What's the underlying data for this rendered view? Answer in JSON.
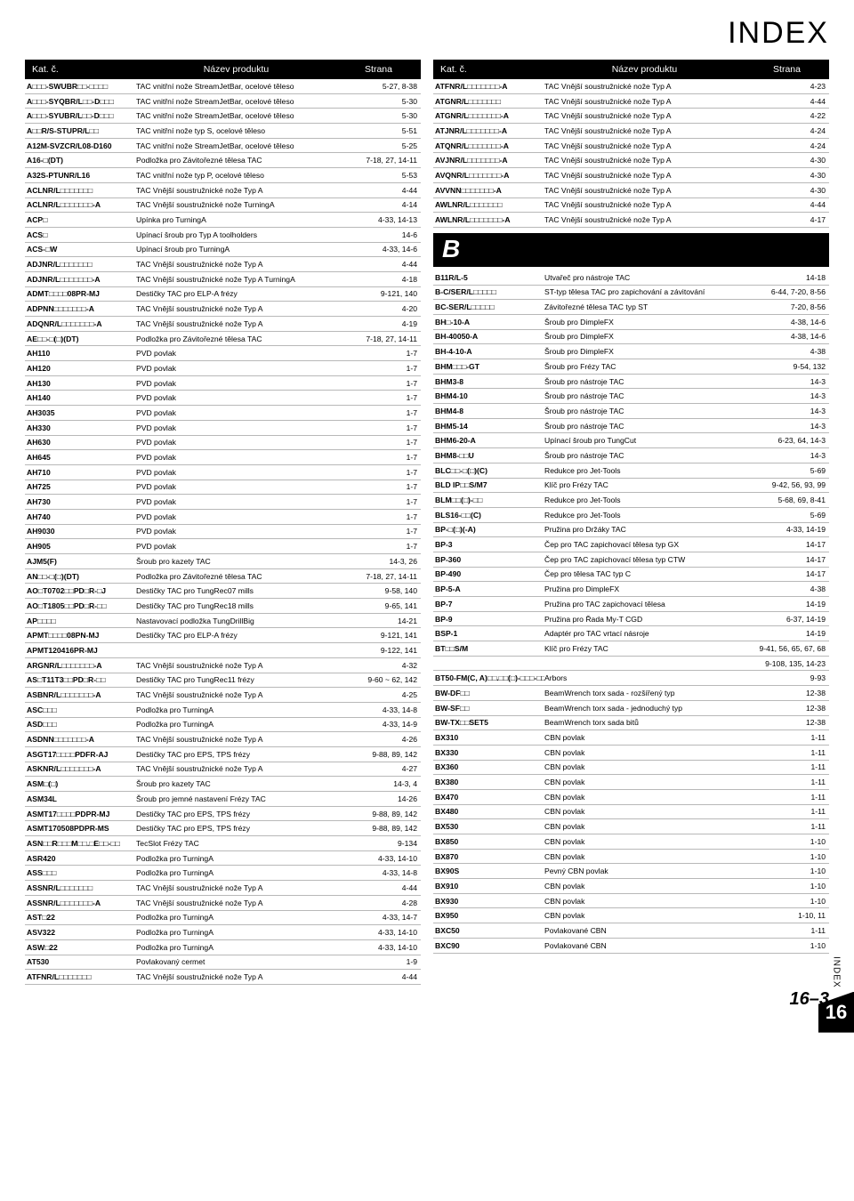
{
  "page_title": "INDEX",
  "side_tab": {
    "label": "INDEX",
    "number": "16"
  },
  "page_number": "16–3",
  "headers": {
    "code": "Kat. č.",
    "name": "Název produktu",
    "page": "Strana"
  },
  "section_b_letter": "B",
  "left": [
    {
      "code": "A□□□-SWUBR□□-□□□□",
      "name": "TAC vnitřní nože StreamJetBar, ocelové těleso",
      "page": "5-27, 8-38"
    },
    {
      "code": "A□□□-SYQBR/L□□-D□□□",
      "name": "TAC vnitřní nože StreamJetBar, ocelové těleso",
      "page": "5-30"
    },
    {
      "code": "A□□□-SYUBR/L□□-D□□□",
      "name": "TAC vnitřní nože StreamJetBar, ocelové těleso",
      "page": "5-30"
    },
    {
      "code": "A□□R/S-STUPR/L□□",
      "name": "TAC vnitřní nože typ S, ocelové těleso",
      "page": "5-51"
    },
    {
      "code": "A12M-SVZCR/L08-D160",
      "name": "TAC vnitřní nože StreamJetBar, ocelové těleso",
      "page": "5-25"
    },
    {
      "code": "A16-□(DT)",
      "name": "Podložka pro Závitořezné tělesa TAC",
      "page": "7-18, 27, 14-11"
    },
    {
      "code": "A32S-PTUNR/L16",
      "name": "TAC vnitřní nože typ P, ocelové těleso",
      "page": "5-53"
    },
    {
      "code": "ACLNR/L□□□□□□□",
      "name": "TAC  Vnější soustružnické nože Typ A",
      "page": "4-44"
    },
    {
      "code": "ACLNR/L□□□□□□□-A",
      "name": "TAC  Vnější soustružnické nože TurningA",
      "page": "4-14"
    },
    {
      "code": "ACP□",
      "name": "Upínka pro TurningA",
      "page": "4-33, 14-13"
    },
    {
      "code": "ACS□",
      "name": "Upínací šroub pro Typ A toolholders",
      "page": "14-6"
    },
    {
      "code": "ACS-□W",
      "name": "Upínací šroub pro TurningA",
      "page": "4-33, 14-6"
    },
    {
      "code": "ADJNR/L□□□□□□□",
      "name": "TAC  Vnější soustružnické nože Typ A",
      "page": "4-44"
    },
    {
      "code": "ADJNR/L□□□□□□□-A",
      "name": "TAC  Vnější soustružnické nože Typ A TurningA",
      "page": "4-18"
    },
    {
      "code": "ADMT□□□□08PR-MJ",
      "name": "Destičky TAC pro ELP-A frézy",
      "page": "9-121, 140"
    },
    {
      "code": "ADPNN□□□□□□□-A",
      "name": "TAC  Vnější soustružnické nože Typ A",
      "page": "4-20"
    },
    {
      "code": "ADQNR/L□□□□□□□-A",
      "name": "TAC  Vnější soustružnické nože Typ A",
      "page": "4-19"
    },
    {
      "code": "AE□□-□(□)(DT)",
      "name": "Podložka pro Závitořezné tělesa TAC",
      "page": "7-18, 27, 14-11"
    },
    {
      "code": "AH110",
      "name": "PVD povlak",
      "page": "1-7"
    },
    {
      "code": "AH120",
      "name": "PVD povlak",
      "page": "1-7"
    },
    {
      "code": "AH130",
      "name": "PVD povlak",
      "page": "1-7"
    },
    {
      "code": "AH140",
      "name": "PVD povlak",
      "page": "1-7"
    },
    {
      "code": "AH3035",
      "name": "PVD povlak",
      "page": "1-7"
    },
    {
      "code": "AH330",
      "name": "PVD povlak",
      "page": "1-7"
    },
    {
      "code": "AH630",
      "name": "PVD povlak",
      "page": "1-7"
    },
    {
      "code": "AH645",
      "name": "PVD povlak",
      "page": "1-7"
    },
    {
      "code": "AH710",
      "name": "PVD povlak",
      "page": "1-7"
    },
    {
      "code": "AH725",
      "name": "PVD povlak",
      "page": "1-7"
    },
    {
      "code": "AH730",
      "name": "PVD povlak",
      "page": "1-7"
    },
    {
      "code": "AH740",
      "name": "PVD povlak",
      "page": "1-7"
    },
    {
      "code": "AH9030",
      "name": "PVD povlak",
      "page": "1-7"
    },
    {
      "code": "AH905",
      "name": "PVD povlak",
      "page": "1-7"
    },
    {
      "code": "AJM5(F)",
      "name": "Šroub pro kazety TAC",
      "page": "14-3, 26"
    },
    {
      "code": "AN□□-□(□)(DT)",
      "name": "Podložka pro Závitořezné tělesa TAC",
      "page": "7-18, 27, 14-11"
    },
    {
      "code": "AO□T0702□□PD□R-□J",
      "name": "Destičky TAC pro TungRec07 mills",
      "page": "9-58, 140"
    },
    {
      "code": "AO□T1805□□PD□R-□□",
      "name": "Destičky TAC pro TungRec18 mills",
      "page": "9-65, 141"
    },
    {
      "code": "AP□□□□",
      "name": "Nastavovací podložka TungDrillBig",
      "page": "14-21"
    },
    {
      "code": "APMT□□□□08PN-MJ",
      "name": "Destičky TAC pro ELP-A frézy",
      "page": "9-121, 141"
    },
    {
      "code": "APMT120416PR-MJ",
      "name": "",
      "page": "9-122, 141"
    },
    {
      "code": "ARGNR/L□□□□□□□-A",
      "name": "TAC  Vnější soustružnické nože Typ A",
      "page": "4-32"
    },
    {
      "code": "AS□T11T3□□PD□R-□□",
      "name": "Destičky TAC pro TungRec11 frézy",
      "page": "9-60 ~ 62, 142"
    },
    {
      "code": "ASBNR/L□□□□□□□-A",
      "name": "TAC  Vnější soustružnické nože Typ A",
      "page": "4-25"
    },
    {
      "code": "ASC□□□",
      "name": "Podložka pro TurningA",
      "page": "4-33, 14-8"
    },
    {
      "code": "ASD□□□",
      "name": "Podložka pro TurningA",
      "page": "4-33, 14-9"
    },
    {
      "code": "ASDNN□□□□□□□-A",
      "name": "TAC  Vnější soustružnické nože Typ A",
      "page": "4-26"
    },
    {
      "code": "ASGT17□□□□PDFR-AJ",
      "name": "Destičky TAC pro EPS, TPS frézy",
      "page": "9-88, 89, 142"
    },
    {
      "code": "ASKNR/L□□□□□□□-A",
      "name": "TAC  Vnější soustružnické nože Typ A",
      "page": "4-27"
    },
    {
      "code": "ASM□(□)",
      "name": "Šroub pro kazety TAC",
      "page": "14-3, 4"
    },
    {
      "code": "ASM34L",
      "name": "Šroub pro jemné nastavení Frézy TAC",
      "page": "14-26"
    },
    {
      "code": "ASMT17□□□□PDPR-MJ",
      "name": "Destičky TAC pro EPS, TPS frézy",
      "page": "9-88, 89, 142"
    },
    {
      "code": "ASMT170508PDPR-MS",
      "name": "Destičky TAC pro EPS, TPS frézy",
      "page": "9-88, 89, 142"
    },
    {
      "code": "ASN□□R□□□M□□.□E□□-□□",
      "name": "TecSlot Frézy TAC",
      "page": "9-134"
    },
    {
      "code": "ASR420",
      "name": "Podložka pro TurningA",
      "page": "4-33, 14-10"
    },
    {
      "code": "ASS□□□",
      "name": "Podložka pro TurningA",
      "page": "4-33, 14-8"
    },
    {
      "code": "ASSNR/L□□□□□□□",
      "name": "TAC  Vnější soustružnické nože Typ A",
      "page": "4-44"
    },
    {
      "code": "ASSNR/L□□□□□□□-A",
      "name": "TAC  Vnější soustružnické nože Typ A",
      "page": "4-28"
    },
    {
      "code": "AST□22",
      "name": "Podložka pro TurningA",
      "page": "4-33, 14-7"
    },
    {
      "code": "ASV322",
      "name": "Podložka pro TurningA",
      "page": "4-33, 14-10"
    },
    {
      "code": "ASW□22",
      "name": "Podložka pro TurningA",
      "page": "4-33, 14-10"
    },
    {
      "code": "AT530",
      "name": "Povlakovaný cermet",
      "page": "1-9"
    },
    {
      "code": "ATFNR/L□□□□□□□",
      "name": "TAC  Vnější soustružnické nože Typ A",
      "page": "4-44"
    }
  ],
  "right_top": [
    {
      "code": "ATFNR/L□□□□□□□-A",
      "name": "TAC  Vnější soustružnické nože Typ A",
      "page": "4-23"
    },
    {
      "code": "ATGNR/L□□□□□□□",
      "name": "TAC  Vnější soustružnické nože Typ A",
      "page": "4-44"
    },
    {
      "code": "ATGNR/L□□□□□□□-A",
      "name": "TAC  Vnější soustružnické nože Typ A",
      "page": "4-22"
    },
    {
      "code": "ATJNR/L□□□□□□□-A",
      "name": "TAC  Vnější soustružnické nože Typ A",
      "page": "4-24"
    },
    {
      "code": "ATQNR/L□□□□□□□-A",
      "name": "TAC  Vnější soustružnické nože Typ A",
      "page": "4-24"
    },
    {
      "code": "AVJNR/L□□□□□□□-A",
      "name": "TAC  Vnější soustružnické nože Typ A",
      "page": "4-30"
    },
    {
      "code": "AVQNR/L□□□□□□□-A",
      "name": "TAC  Vnější soustružnické nože Typ A",
      "page": "4-30"
    },
    {
      "code": "AVVNN□□□□□□□-A",
      "name": "TAC  Vnější soustružnické nože Typ A",
      "page": "4-30"
    },
    {
      "code": "AWLNR/L□□□□□□□",
      "name": "TAC  Vnější soustružnické nože Typ A",
      "page": "4-44"
    },
    {
      "code": "AWLNR/L□□□□□□□-A",
      "name": "TAC  Vnější soustružnické nože Typ A",
      "page": "4-17"
    }
  ],
  "right_b": [
    {
      "code": "B11R/L-5",
      "name": "Utvařeč pro nástroje TAC",
      "page": "14-18"
    },
    {
      "code": "B-C/SER/L□□□□□",
      "name": "ST-typ tělesa TAC pro zapichování a závitování",
      "page": "6-44, 7-20, 8-56"
    },
    {
      "code": "BC-SER/L□□□□□",
      "name": "Závitořezné tělesa TAC typ ST",
      "page": "7-20, 8-56"
    },
    {
      "code": "BH□-10-A",
      "name": "Šroub pro DimpleFX",
      "page": "4-38, 14-6"
    },
    {
      "code": "BH-40050-A",
      "name": "Šroub pro DimpleFX",
      "page": "4-38, 14-6"
    },
    {
      "code": "BH-4-10-A",
      "name": "Šroub pro DimpleFX",
      "page": "4-38"
    },
    {
      "code": "BHM□□□-GT",
      "name": "Šroub pro Frézy TAC",
      "page": "9-54, 132"
    },
    {
      "code": "BHM3-8",
      "name": "Šroub pro nástroje TAC",
      "page": "14-3"
    },
    {
      "code": "BHM4-10",
      "name": "Šroub pro nástroje TAC",
      "page": "14-3"
    },
    {
      "code": "BHM4-8",
      "name": "Šroub pro nástroje TAC",
      "page": "14-3"
    },
    {
      "code": "BHM5-14",
      "name": "Šroub pro nástroje TAC",
      "page": "14-3"
    },
    {
      "code": "BHM6-20-A",
      "name": "Upínací šroub pro TungCut",
      "page": "6-23, 64, 14-3"
    },
    {
      "code": "BHM8-□□U",
      "name": "Šroub pro nástroje TAC",
      "page": "14-3"
    },
    {
      "code": "BLC□□-□(□)(C)",
      "name": "Redukce pro Jet-Tools",
      "page": "5-69"
    },
    {
      "code": "BLD IP□□S/M7",
      "name": "Klíč pro Frézy TAC",
      "page": "9-42, 56, 93, 99"
    },
    {
      "code": "BLM□□(□)-□□",
      "name": "Redukce pro Jet-Tools",
      "page": "5-68, 69, 8-41"
    },
    {
      "code": "BLS16-□□(C)",
      "name": "Redukce pro Jet-Tools",
      "page": "5-69"
    },
    {
      "code": "BP-□(□)(-A)",
      "name": "Pružina pro Držáky TAC",
      "page": "4-33, 14-19"
    },
    {
      "code": "BP-3",
      "name": "Čep pro TAC zapichovací tělesa typ GX",
      "page": "14-17"
    },
    {
      "code": "BP-360",
      "name": "Čep pro TAC zapichovací tělesa typ CTW",
      "page": "14-17"
    },
    {
      "code": "BP-490",
      "name": "Čep pro tělesa  TAC typ C",
      "page": "14-17"
    },
    {
      "code": "BP-5-A",
      "name": "Pružina pro DimpleFX",
      "page": "4-38"
    },
    {
      "code": "BP-7",
      "name": "Pružina pro TAC zapichovací tělesa",
      "page": "14-19"
    },
    {
      "code": "BP-9",
      "name": "Pružina pro Řada My-T CGD",
      "page": "6-37, 14-19"
    },
    {
      "code": "BSP-1",
      "name": "Adaptér pro TAC vrtací násroje",
      "page": "14-19"
    },
    {
      "code": "BT□□S/M",
      "name": "Klíč pro Frézy TAC",
      "page": "9-41, 56, 65, 67, 68"
    },
    {
      "code": "",
      "name": "",
      "page": "9-108, 135, 14-23"
    },
    {
      "code": "BT50-FM(C, A)□□.□□(□)-□□□-□□",
      "name": "Arbors",
      "page": "9-93"
    },
    {
      "code": "BW-DF□□",
      "name": "BeamWrench torx sada - rozšířený typ",
      "page": "12-38"
    },
    {
      "code": "BW-SF□□",
      "name": "BeamWrench torx sada - jednoduchý typ",
      "page": "12-38"
    },
    {
      "code": "BW-TX□□SET5",
      "name": "BeamWrench torx sada bitů",
      "page": "12-38"
    },
    {
      "code": "BX310",
      "name": "CBN povlak",
      "page": "1-11"
    },
    {
      "code": "BX330",
      "name": "CBN povlak",
      "page": "1-11"
    },
    {
      "code": "BX360",
      "name": "CBN povlak",
      "page": "1-11"
    },
    {
      "code": "BX380",
      "name": "CBN povlak",
      "page": "1-11"
    },
    {
      "code": "BX470",
      "name": "CBN povlak",
      "page": "1-11"
    },
    {
      "code": "BX480",
      "name": "CBN povlak",
      "page": "1-11"
    },
    {
      "code": "BX530",
      "name": "CBN povlak",
      "page": "1-11"
    },
    {
      "code": "BX850",
      "name": "CBN povlak",
      "page": "1-10"
    },
    {
      "code": "BX870",
      "name": "CBN povlak",
      "page": "1-10"
    },
    {
      "code": "BX90S",
      "name": "Pevný CBN povlak",
      "page": "1-10"
    },
    {
      "code": "BX910",
      "name": "CBN povlak",
      "page": "1-10"
    },
    {
      "code": "BX930",
      "name": "CBN povlak",
      "page": "1-10"
    },
    {
      "code": "BX950",
      "name": "CBN povlak",
      "page": "1-10, 11"
    },
    {
      "code": "BXC50",
      "name": "Povlakované CBN",
      "page": "1-11"
    },
    {
      "code": "BXC90",
      "name": "Povlakované CBN",
      "page": "1-10"
    }
  ]
}
